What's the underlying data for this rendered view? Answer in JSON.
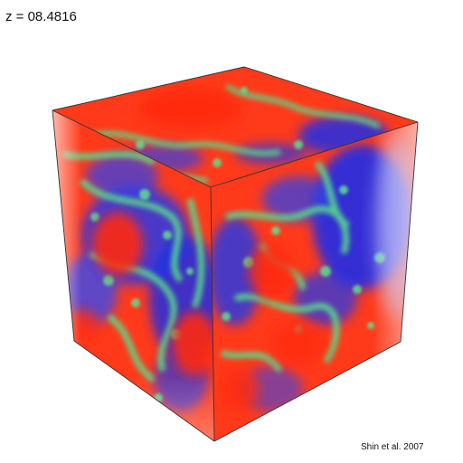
{
  "redshift_label": "z = 08.4816",
  "credit": "Shin et al. 2007",
  "palette": {
    "ionized_red": "#ff2a10",
    "neutral_blue": "#1f2fe8",
    "front_green": "#56d88a",
    "haze_blue": "#c9ccff",
    "edge_line": "#333333"
  }
}
